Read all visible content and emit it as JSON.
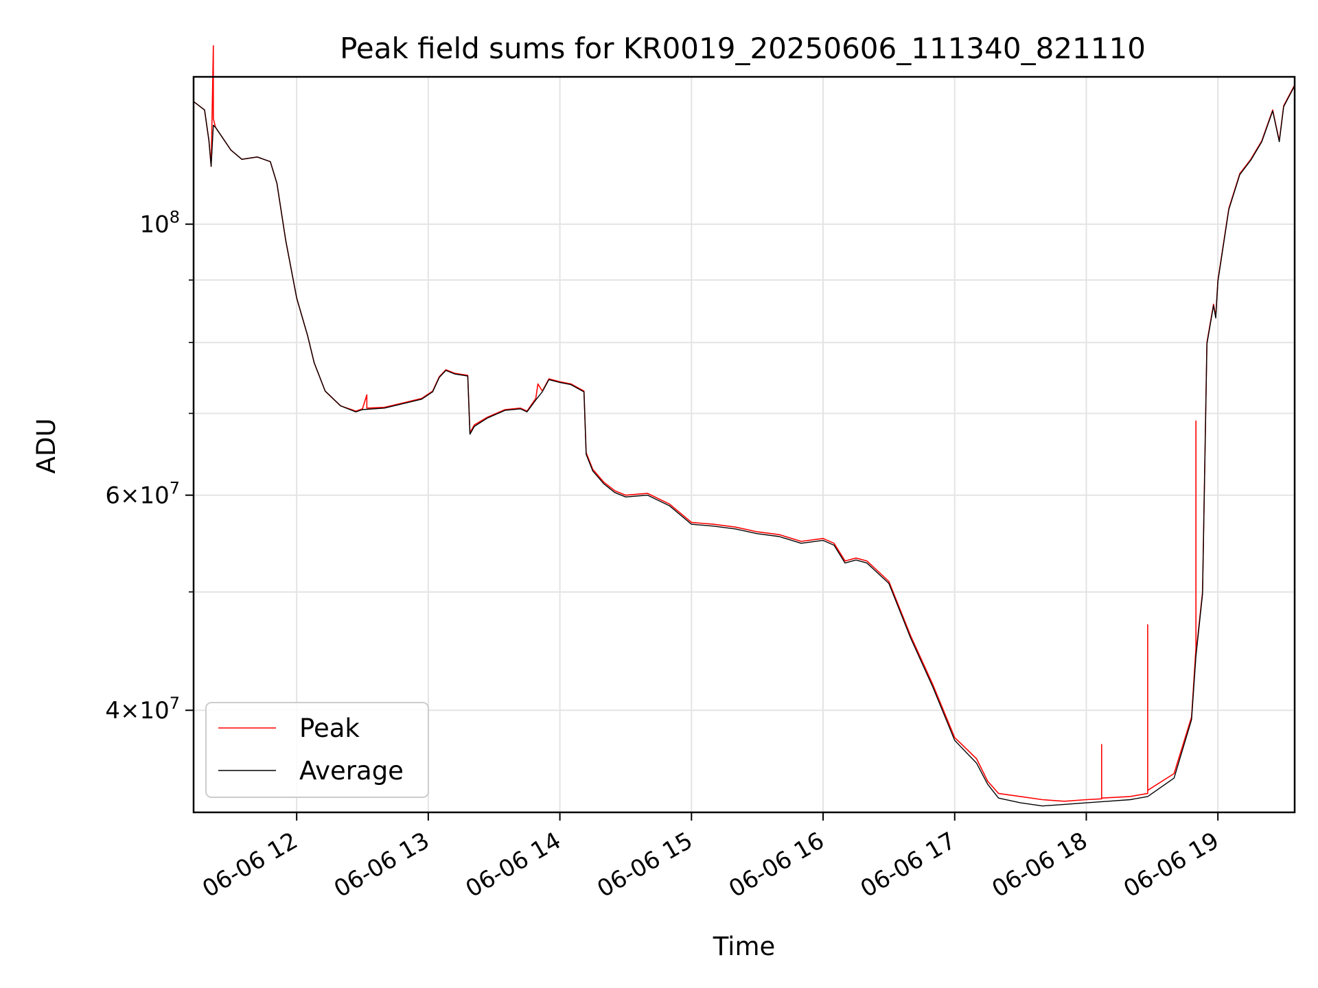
{
  "chart_data": {
    "type": "line",
    "title": "Peak field sums for KR0019_20250606_111340_821110",
    "xlabel": "Time",
    "ylabel": "ADU",
    "y_scale": "log",
    "grid": true,
    "legend_position": "lower-left",
    "xlim": [
      "2025-06-06 11:13",
      "2025-06-06 19:35"
    ],
    "ylim": [
      33000000,
      132000000
    ],
    "x_ticks": [
      {
        "t": "2025-06-06 12:00",
        "label": "06-06 12"
      },
      {
        "t": "2025-06-06 13:00",
        "label": "06-06 13"
      },
      {
        "t": "2025-06-06 14:00",
        "label": "06-06 14"
      },
      {
        "t": "2025-06-06 15:00",
        "label": "06-06 15"
      },
      {
        "t": "2025-06-06 16:00",
        "label": "06-06 16"
      },
      {
        "t": "2025-06-06 17:00",
        "label": "06-06 17"
      },
      {
        "t": "2025-06-06 18:00",
        "label": "06-06 18"
      },
      {
        "t": "2025-06-06 19:00",
        "label": "06-06 19"
      }
    ],
    "y_major_ticks": [
      {
        "value": 100000000,
        "mantissa": "",
        "exponent": "8"
      },
      {
        "value": 60000000,
        "mantissa": "6",
        "exponent": "7"
      },
      {
        "value": 40000000,
        "mantissa": "4",
        "exponent": "7"
      }
    ],
    "y_minor_gridlines": [
      90000000,
      80000000,
      70000000,
      50000000
    ],
    "series": [
      {
        "name": "Peak",
        "color": "#ff0000",
        "points": [
          [
            "2025-06-06 11:13",
            126000000
          ],
          [
            "2025-06-06 11:18",
            124000000
          ],
          [
            "2025-06-06 11:20",
            117000000
          ],
          [
            "2025-06-06 11:21",
            111500000
          ],
          [
            "2025-06-06 11:22",
            140000000
          ],
          [
            "2025-06-06 11:22",
            122000000
          ],
          [
            "2025-06-06 11:23",
            120000000
          ],
          [
            "2025-06-06 11:30",
            115000000
          ],
          [
            "2025-06-06 11:35",
            113000000
          ],
          [
            "2025-06-06 11:42",
            113500000
          ],
          [
            "2025-06-06 11:48",
            112500000
          ],
          [
            "2025-06-06 11:51",
            108000000
          ],
          [
            "2025-06-06 11:55",
            97000000
          ],
          [
            "2025-06-06 12:00",
            87000000
          ],
          [
            "2025-06-06 12:05",
            81000000
          ],
          [
            "2025-06-06 12:08",
            77000000
          ],
          [
            "2025-06-06 12:13",
            73000000
          ],
          [
            "2025-06-06 12:20",
            71000000
          ],
          [
            "2025-06-06 12:27",
            70300000
          ],
          [
            "2025-06-06 12:30",
            70600000
          ],
          [
            "2025-06-06 12:32",
            72500000
          ],
          [
            "2025-06-06 12:32",
            70700000
          ],
          [
            "2025-06-06 12:40",
            70800000
          ],
          [
            "2025-06-06 12:50",
            71500000
          ],
          [
            "2025-06-06 12:57",
            72000000
          ],
          [
            "2025-06-06 13:02",
            73000000
          ],
          [
            "2025-06-06 13:05",
            75000000
          ],
          [
            "2025-06-06 13:08",
            76000000
          ],
          [
            "2025-06-06 13:12",
            75500000
          ],
          [
            "2025-06-06 13:18",
            75200000
          ],
          [
            "2025-06-06 13:19",
            67500000
          ],
          [
            "2025-06-06 13:21",
            68500000
          ],
          [
            "2025-06-06 13:27",
            69500000
          ],
          [
            "2025-06-06 13:35",
            70500000
          ],
          [
            "2025-06-06 13:42",
            70700000
          ],
          [
            "2025-06-06 13:45",
            70300000
          ],
          [
            "2025-06-06 13:49",
            72000000
          ],
          [
            "2025-06-06 13:50",
            74000000
          ],
          [
            "2025-06-06 13:52",
            73000000
          ],
          [
            "2025-06-06 13:55",
            74700000
          ],
          [
            "2025-06-06 14:00",
            74300000
          ],
          [
            "2025-06-06 14:05",
            74000000
          ],
          [
            "2025-06-06 14:11",
            73000000
          ],
          [
            "2025-06-06 14:12",
            65000000
          ],
          [
            "2025-06-06 14:15",
            63000000
          ],
          [
            "2025-06-06 14:20",
            61500000
          ],
          [
            "2025-06-06 14:25",
            60500000
          ],
          [
            "2025-06-06 14:30",
            60000000
          ],
          [
            "2025-06-06 14:40",
            60200000
          ],
          [
            "2025-06-06 14:50",
            59000000
          ],
          [
            "2025-06-06 15:00",
            57000000
          ],
          [
            "2025-06-06 15:10",
            56800000
          ],
          [
            "2025-06-06 15:20",
            56500000
          ],
          [
            "2025-06-06 15:30",
            56000000
          ],
          [
            "2025-06-06 15:40",
            55700000
          ],
          [
            "2025-06-06 15:50",
            55000000
          ],
          [
            "2025-06-06 16:00",
            55300000
          ],
          [
            "2025-06-06 16:05",
            54800000
          ],
          [
            "2025-06-06 16:10",
            53000000
          ],
          [
            "2025-06-06 16:15",
            53300000
          ],
          [
            "2025-06-06 16:20",
            53000000
          ],
          [
            "2025-06-06 16:30",
            51000000
          ],
          [
            "2025-06-06 16:40",
            46000000
          ],
          [
            "2025-06-06 16:50",
            42000000
          ],
          [
            "2025-06-06 17:00",
            38000000
          ],
          [
            "2025-06-06 17:10",
            36500000
          ],
          [
            "2025-06-06 17:15",
            35000000
          ],
          [
            "2025-06-06 17:20",
            34200000
          ],
          [
            "2025-06-06 17:30",
            34000000
          ],
          [
            "2025-06-06 17:40",
            33800000
          ],
          [
            "2025-06-06 17:50",
            33700000
          ],
          [
            "2025-06-06 18:00",
            33800000
          ],
          [
            "2025-06-06 18:07",
            33850000
          ],
          [
            "2025-06-06 18:07",
            37500000
          ],
          [
            "2025-06-06 18:07",
            33900000
          ],
          [
            "2025-06-06 18:20",
            34000000
          ],
          [
            "2025-06-06 18:28",
            34200000
          ],
          [
            "2025-06-06 18:28",
            47000000
          ],
          [
            "2025-06-06 18:28",
            34400000
          ],
          [
            "2025-06-06 18:40",
            35500000
          ],
          [
            "2025-06-06 18:48",
            39500000
          ],
          [
            "2025-06-06 18:50",
            45000000
          ],
          [
            "2025-06-06 18:50",
            69000000
          ],
          [
            "2025-06-06 18:50",
            44500000
          ],
          [
            "2025-06-06 18:53",
            50000000
          ],
          [
            "2025-06-06 18:55",
            80000000
          ],
          [
            "2025-06-06 18:58",
            86000000
          ],
          [
            "2025-06-06 18:59",
            84000000
          ],
          [
            "2025-06-06 19:00",
            90000000
          ],
          [
            "2025-06-06 19:05",
            103000000
          ],
          [
            "2025-06-06 19:10",
            110000000
          ],
          [
            "2025-06-06 19:15",
            113000000
          ],
          [
            "2025-06-06 19:20",
            117000000
          ],
          [
            "2025-06-06 19:25",
            124000000
          ],
          [
            "2025-06-06 19:28",
            117000000
          ],
          [
            "2025-06-06 19:30",
            125000000
          ],
          [
            "2025-06-06 19:35",
            130000000
          ]
        ]
      },
      {
        "name": "Average",
        "color": "#000000",
        "points": [
          [
            "2025-06-06 11:13",
            126000000
          ],
          [
            "2025-06-06 11:18",
            124000000
          ],
          [
            "2025-06-06 11:20",
            117000000
          ],
          [
            "2025-06-06 11:21",
            111500000
          ],
          [
            "2025-06-06 11:22",
            120500000
          ],
          [
            "2025-06-06 11:23",
            120000000
          ],
          [
            "2025-06-06 11:30",
            115000000
          ],
          [
            "2025-06-06 11:35",
            113000000
          ],
          [
            "2025-06-06 11:42",
            113500000
          ],
          [
            "2025-06-06 11:48",
            112500000
          ],
          [
            "2025-06-06 11:51",
            108000000
          ],
          [
            "2025-06-06 11:55",
            97000000
          ],
          [
            "2025-06-06 12:00",
            87000000
          ],
          [
            "2025-06-06 12:05",
            81000000
          ],
          [
            "2025-06-06 12:08",
            77000000
          ],
          [
            "2025-06-06 12:13",
            73000000
          ],
          [
            "2025-06-06 12:20",
            71000000
          ],
          [
            "2025-06-06 12:27",
            70200000
          ],
          [
            "2025-06-06 12:30",
            70500000
          ],
          [
            "2025-06-06 12:40",
            70700000
          ],
          [
            "2025-06-06 12:50",
            71400000
          ],
          [
            "2025-06-06 12:57",
            71900000
          ],
          [
            "2025-06-06 13:02",
            72900000
          ],
          [
            "2025-06-06 13:05",
            74900000
          ],
          [
            "2025-06-06 13:08",
            75900000
          ],
          [
            "2025-06-06 13:12",
            75400000
          ],
          [
            "2025-06-06 13:18",
            75100000
          ],
          [
            "2025-06-06 13:19",
            67300000
          ],
          [
            "2025-06-06 13:21",
            68300000
          ],
          [
            "2025-06-06 13:27",
            69400000
          ],
          [
            "2025-06-06 13:35",
            70400000
          ],
          [
            "2025-06-06 13:42",
            70600000
          ],
          [
            "2025-06-06 13:45",
            70200000
          ],
          [
            "2025-06-06 13:49",
            71800000
          ],
          [
            "2025-06-06 13:52",
            72900000
          ],
          [
            "2025-06-06 13:55",
            74600000
          ],
          [
            "2025-06-06 14:00",
            74200000
          ],
          [
            "2025-06-06 14:05",
            73900000
          ],
          [
            "2025-06-06 14:11",
            72900000
          ],
          [
            "2025-06-06 14:12",
            64800000
          ],
          [
            "2025-06-06 14:15",
            62800000
          ],
          [
            "2025-06-06 14:20",
            61300000
          ],
          [
            "2025-06-06 14:25",
            60300000
          ],
          [
            "2025-06-06 14:30",
            59800000
          ],
          [
            "2025-06-06 14:40",
            60000000
          ],
          [
            "2025-06-06 14:50",
            58800000
          ],
          [
            "2025-06-06 15:00",
            56800000
          ],
          [
            "2025-06-06 15:10",
            56600000
          ],
          [
            "2025-06-06 15:20",
            56300000
          ],
          [
            "2025-06-06 15:30",
            55800000
          ],
          [
            "2025-06-06 15:40",
            55500000
          ],
          [
            "2025-06-06 15:50",
            54800000
          ],
          [
            "2025-06-06 16:00",
            55100000
          ],
          [
            "2025-06-06 16:05",
            54600000
          ],
          [
            "2025-06-06 16:10",
            52800000
          ],
          [
            "2025-06-06 16:15",
            53100000
          ],
          [
            "2025-06-06 16:20",
            52800000
          ],
          [
            "2025-06-06 16:30",
            50800000
          ],
          [
            "2025-06-06 16:40",
            45800000
          ],
          [
            "2025-06-06 16:50",
            41800000
          ],
          [
            "2025-06-06 17:00",
            37800000
          ],
          [
            "2025-06-06 17:10",
            36200000
          ],
          [
            "2025-06-06 17:15",
            34800000
          ],
          [
            "2025-06-06 17:20",
            33900000
          ],
          [
            "2025-06-06 17:30",
            33600000
          ],
          [
            "2025-06-06 17:40",
            33400000
          ],
          [
            "2025-06-06 17:50",
            33500000
          ],
          [
            "2025-06-06 18:00",
            33600000
          ],
          [
            "2025-06-06 18:10",
            33700000
          ],
          [
            "2025-06-06 18:20",
            33800000
          ],
          [
            "2025-06-06 18:28",
            34000000
          ],
          [
            "2025-06-06 18:40",
            35200000
          ],
          [
            "2025-06-06 18:48",
            39300000
          ],
          [
            "2025-06-06 18:50",
            44300000
          ],
          [
            "2025-06-06 18:53",
            49800000
          ],
          [
            "2025-06-06 18:55",
            79800000
          ],
          [
            "2025-06-06 18:58",
            85800000
          ],
          [
            "2025-06-06 18:59",
            83800000
          ],
          [
            "2025-06-06 19:00",
            89800000
          ],
          [
            "2025-06-06 19:05",
            102800000
          ],
          [
            "2025-06-06 19:10",
            109800000
          ],
          [
            "2025-06-06 19:15",
            112800000
          ],
          [
            "2025-06-06 19:20",
            116800000
          ],
          [
            "2025-06-06 19:25",
            123800000
          ],
          [
            "2025-06-06 19:28",
            116800000
          ],
          [
            "2025-06-06 19:30",
            124800000
          ],
          [
            "2025-06-06 19:35",
            129800000
          ]
        ]
      }
    ]
  }
}
